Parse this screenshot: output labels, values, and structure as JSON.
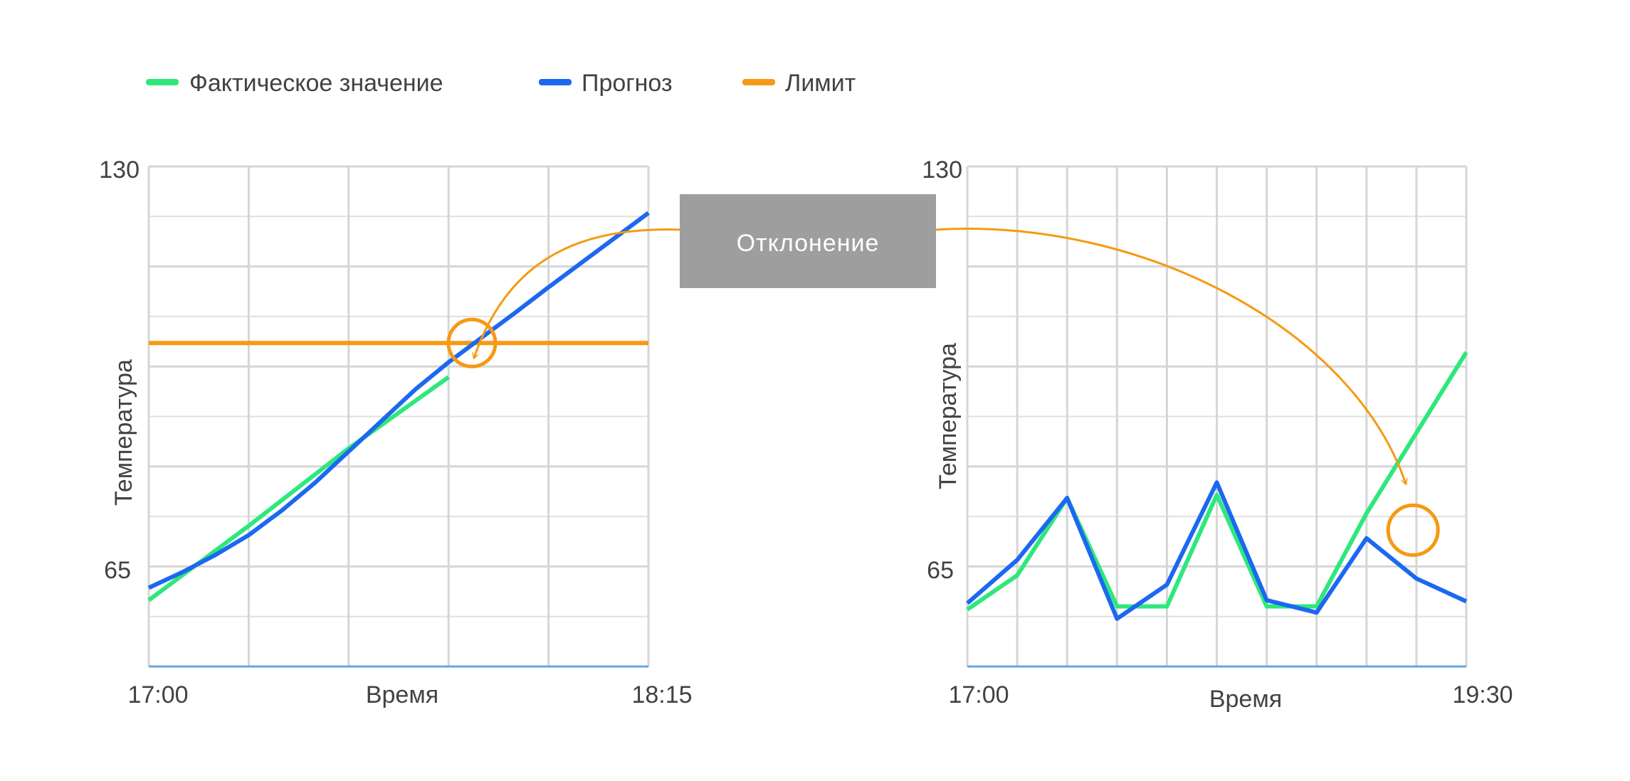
{
  "legend": {
    "items": [
      {
        "label": "Фактическое значение",
        "color": "#2ee87c"
      },
      {
        "label": "Прогноз",
        "color": "#1c68f0"
      },
      {
        "label": "Лимит",
        "color": "#f59a12"
      }
    ]
  },
  "callout": {
    "label": "Отклонение",
    "background": "#9e9e9e",
    "arrow_color": "#f59a12"
  },
  "chart_data": [
    {
      "type": "line",
      "title": "",
      "xlabel": "Время",
      "ylabel": "Температура",
      "x_tick_labels": [
        "17:00",
        "18:15"
      ],
      "y_tick_labels": [
        "65",
        "130"
      ],
      "xlim": [
        0,
        75
      ],
      "ylim": [
        49.3,
        130
      ],
      "grid": true,
      "series": [
        {
          "name": "Фактическое значение",
          "color": "#2ee87c",
          "x": [
            0,
            15,
            30,
            45
          ],
          "y": [
            60,
            72,
            84.5,
            96
          ]
        },
        {
          "name": "Прогноз",
          "color": "#1c68f0",
          "x": [
            0,
            5,
            10,
            15,
            20,
            25,
            30,
            35,
            40,
            45,
            50,
            55,
            60,
            65,
            70,
            75
          ],
          "y": [
            62,
            64.5,
            67.3,
            70.5,
            74.5,
            79,
            84,
            89,
            94,
            98.4,
            102.4,
            106.4,
            110.5,
            114.5,
            118.5,
            122.5
          ]
        },
        {
          "name": "Лимит",
          "color": "#f59a12",
          "x": [
            0,
            75
          ],
          "y": [
            101.5,
            101.5
          ]
        }
      ],
      "annotations": [
        {
          "label": "deviation marker",
          "x": 48.5,
          "y": 101.5
        }
      ]
    },
    {
      "type": "line",
      "title": "",
      "xlabel": "Время",
      "ylabel": "Температура",
      "x_tick_labels": [
        "17:00",
        "19:30"
      ],
      "y_tick_labels": [
        "65",
        "130"
      ],
      "xlim": [
        0,
        150
      ],
      "ylim": [
        49.3,
        130
      ],
      "grid": true,
      "series": [
        {
          "name": "Фактическое значение",
          "color": "#2ee87c",
          "x": [
            0,
            15,
            30,
            45,
            60,
            75,
            90,
            105,
            120,
            135,
            150
          ],
          "y": [
            58.5,
            64,
            76.5,
            59,
            59,
            77,
            59,
            59,
            74,
            87,
            100
          ]
        },
        {
          "name": "Прогноз",
          "color": "#1c68f0",
          "x": [
            0,
            15,
            30,
            45,
            60,
            75,
            90,
            105,
            120,
            135,
            150
          ],
          "y": [
            59.5,
            66.5,
            76.5,
            57,
            62.5,
            79,
            60,
            58,
            70,
            63.5,
            59.8
          ]
        }
      ],
      "annotations": [
        {
          "label": "deviation marker",
          "x": 134,
          "y": 71.3
        }
      ]
    }
  ]
}
